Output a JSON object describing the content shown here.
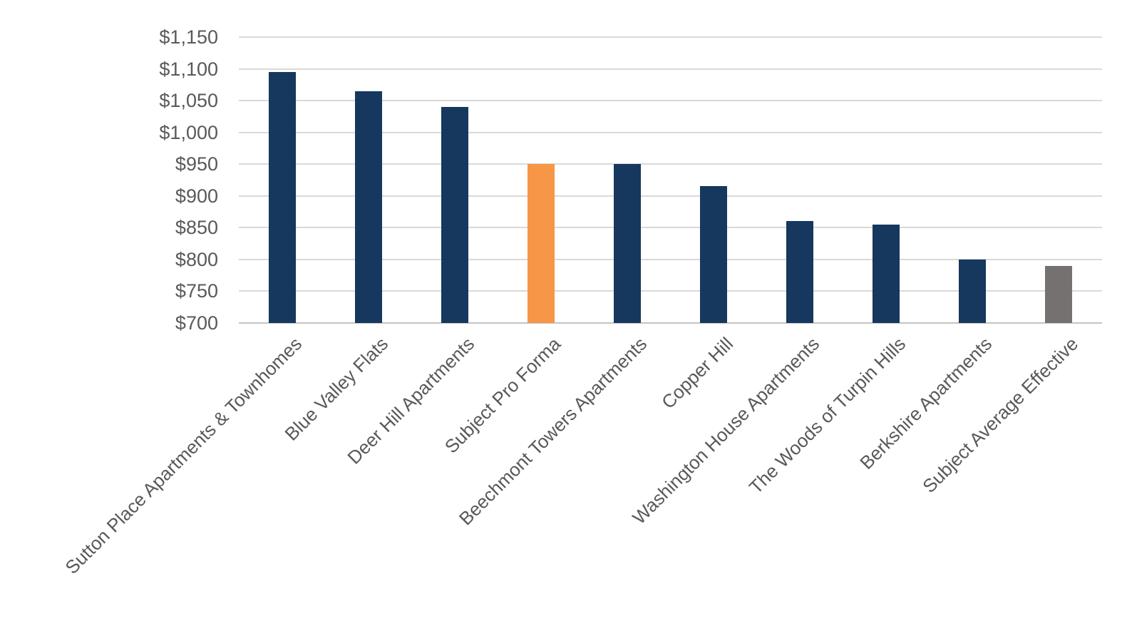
{
  "chart_data": {
    "type": "bar",
    "title": "",
    "xlabel": "",
    "ylabel": "",
    "categories": [
      "Sutton Place Apartments & Townhomes",
      "Blue Valley Flats",
      "Deer Hill Apartments",
      "Subject Pro Forma",
      "Beechmont Towers Apartments",
      "Copper Hill",
      "Washington House Apartments",
      "The Woods of Turpin Hills",
      "Berkshire Apartments",
      "Subject Average Effective"
    ],
    "values": [
      1095,
      1065,
      1040,
      950,
      950,
      915,
      860,
      855,
      800,
      790
    ],
    "bar_colors": [
      "#16375E",
      "#16375E",
      "#16375E",
      "#F79646",
      "#16375E",
      "#16375E",
      "#16375E",
      "#16375E",
      "#16375E",
      "#757171"
    ],
    "ylim": [
      700,
      1150
    ],
    "ytick_labels": [
      "$1,150",
      "$1,100",
      "$1,050",
      "$1,000",
      "$950",
      "$900",
      "$850",
      "$800",
      "$750",
      "$700"
    ],
    "grid": true,
    "legend_position": "none",
    "colors": {
      "bar_default": "#16375E",
      "bar_highlight": "#F79646",
      "bar_subject": "#757171",
      "axis_text": "#595959",
      "gridline": "#D9D9D9",
      "baseline": "#C4C4C4"
    }
  }
}
